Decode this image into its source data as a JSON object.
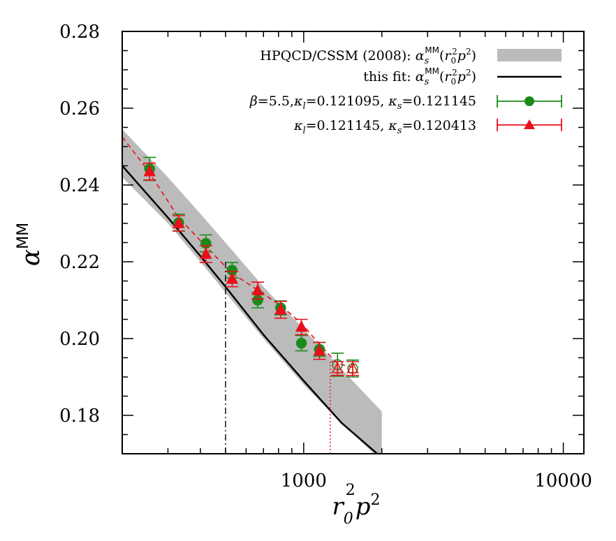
{
  "chart_data": {
    "type": "scatter",
    "xscale": "log",
    "xlim": [
      200,
      12000
    ],
    "ylim": [
      0.17,
      0.28
    ],
    "grid": false,
    "legend_placement": "top-right",
    "xticks": [
      {
        "value": 1000,
        "label": "1000"
      },
      {
        "value": 10000,
        "label": "10000"
      }
    ],
    "yticks": [
      {
        "value": 0.18,
        "label": "0.18"
      },
      {
        "value": 0.2,
        "label": "0.20"
      },
      {
        "value": 0.22,
        "label": "0.22"
      },
      {
        "value": 0.24,
        "label": "0.24"
      },
      {
        "value": 0.26,
        "label": "0.26"
      },
      {
        "value": 0.28,
        "label": "0.28"
      }
    ],
    "xlabel": "r₀²p²",
    "ylabel": "αᴹᴹ",
    "colors": {
      "band": "#bbbbbb",
      "fit": "#000000",
      "green": "#1a8a1a",
      "red": "#e8101a"
    },
    "band": {
      "name": "HPQCD/CSSM (2008): α_s^MM(r₀²p²)",
      "x": [
        200,
        300,
        400,
        500,
        700,
        1000,
        1400,
        2000
      ],
      "low": [
        0.242,
        0.23,
        0.22,
        0.212,
        0.2,
        0.188,
        0.178,
        0.168
      ],
      "high": [
        0.2545,
        0.242,
        0.2325,
        0.225,
        0.2135,
        0.2025,
        0.192,
        0.181
      ]
    },
    "fit_line": {
      "name": "this fit: α_s^MM(r₀²p²)",
      "x": [
        200,
        300,
        400,
        500,
        700,
        1000,
        1400,
        1920
      ],
      "y": [
        0.245,
        0.2315,
        0.2215,
        0.2135,
        0.201,
        0.189,
        0.178,
        0.17
      ]
    },
    "red_dashed_line": {
      "x": [
        200,
        250,
        330,
        420,
        530,
        670,
        820,
        980,
        1150,
        1350,
        1550
      ],
      "y": [
        0.2525,
        0.244,
        0.2315,
        0.224,
        0.217,
        0.2125,
        0.2085,
        0.204,
        0.1985,
        0.1935,
        0.1925
      ]
    },
    "vlines": [
      {
        "x": 500,
        "y_top": 0.22,
        "style": "dashdot",
        "color": "#000000"
      },
      {
        "x": 1265,
        "y_top": 0.194,
        "style": "dotted",
        "color": "#e8101a"
      }
    ],
    "series": [
      {
        "name": "β=5.5,κₗ=0.121095, κₛ=0.121145",
        "marker": "circle",
        "points": [
          {
            "x": 255,
            "y": 0.2442,
            "err": 0.003,
            "open": false
          },
          {
            "x": 330,
            "y": 0.2302,
            "err": 0.0022,
            "open": false
          },
          {
            "x": 420,
            "y": 0.2248,
            "err": 0.0022,
            "open": false
          },
          {
            "x": 530,
            "y": 0.2178,
            "err": 0.002,
            "open": false
          },
          {
            "x": 665,
            "y": 0.21,
            "err": 0.002,
            "open": false
          },
          {
            "x": 815,
            "y": 0.208,
            "err": 0.0018,
            "open": false
          },
          {
            "x": 980,
            "y": 0.1988,
            "err": 0.002,
            "open": false
          },
          {
            "x": 1150,
            "y": 0.1972,
            "err": 0.0018,
            "open": false
          },
          {
            "x": 1350,
            "y": 0.1932,
            "err": 0.003,
            "open": true
          },
          {
            "x": 1545,
            "y": 0.1922,
            "err": 0.0022,
            "open": true
          }
        ]
      },
      {
        "name": "κₗ=0.121145, κₛ=0.120413",
        "marker": "triangle",
        "points": [
          {
            "x": 255,
            "y": 0.2435,
            "err": 0.0022,
            "open": false
          },
          {
            "x": 330,
            "y": 0.23,
            "err": 0.002,
            "open": false
          },
          {
            "x": 420,
            "y": 0.222,
            "err": 0.0022,
            "open": false
          },
          {
            "x": 530,
            "y": 0.2155,
            "err": 0.002,
            "open": false
          },
          {
            "x": 665,
            "y": 0.2125,
            "err": 0.0022,
            "open": false
          },
          {
            "x": 815,
            "y": 0.2075,
            "err": 0.0022,
            "open": false
          },
          {
            "x": 980,
            "y": 0.203,
            "err": 0.002,
            "open": false
          },
          {
            "x": 1150,
            "y": 0.1968,
            "err": 0.0022,
            "open": false
          },
          {
            "x": 1350,
            "y": 0.1922,
            "err": 0.0018,
            "open": true
          },
          {
            "x": 1545,
            "y": 0.1922,
            "err": 0.0018,
            "open": true
          }
        ]
      }
    ]
  },
  "legend": {
    "band_text": "HPQCD/CSSM (2008): ",
    "fit_text": "this fit: "
  }
}
